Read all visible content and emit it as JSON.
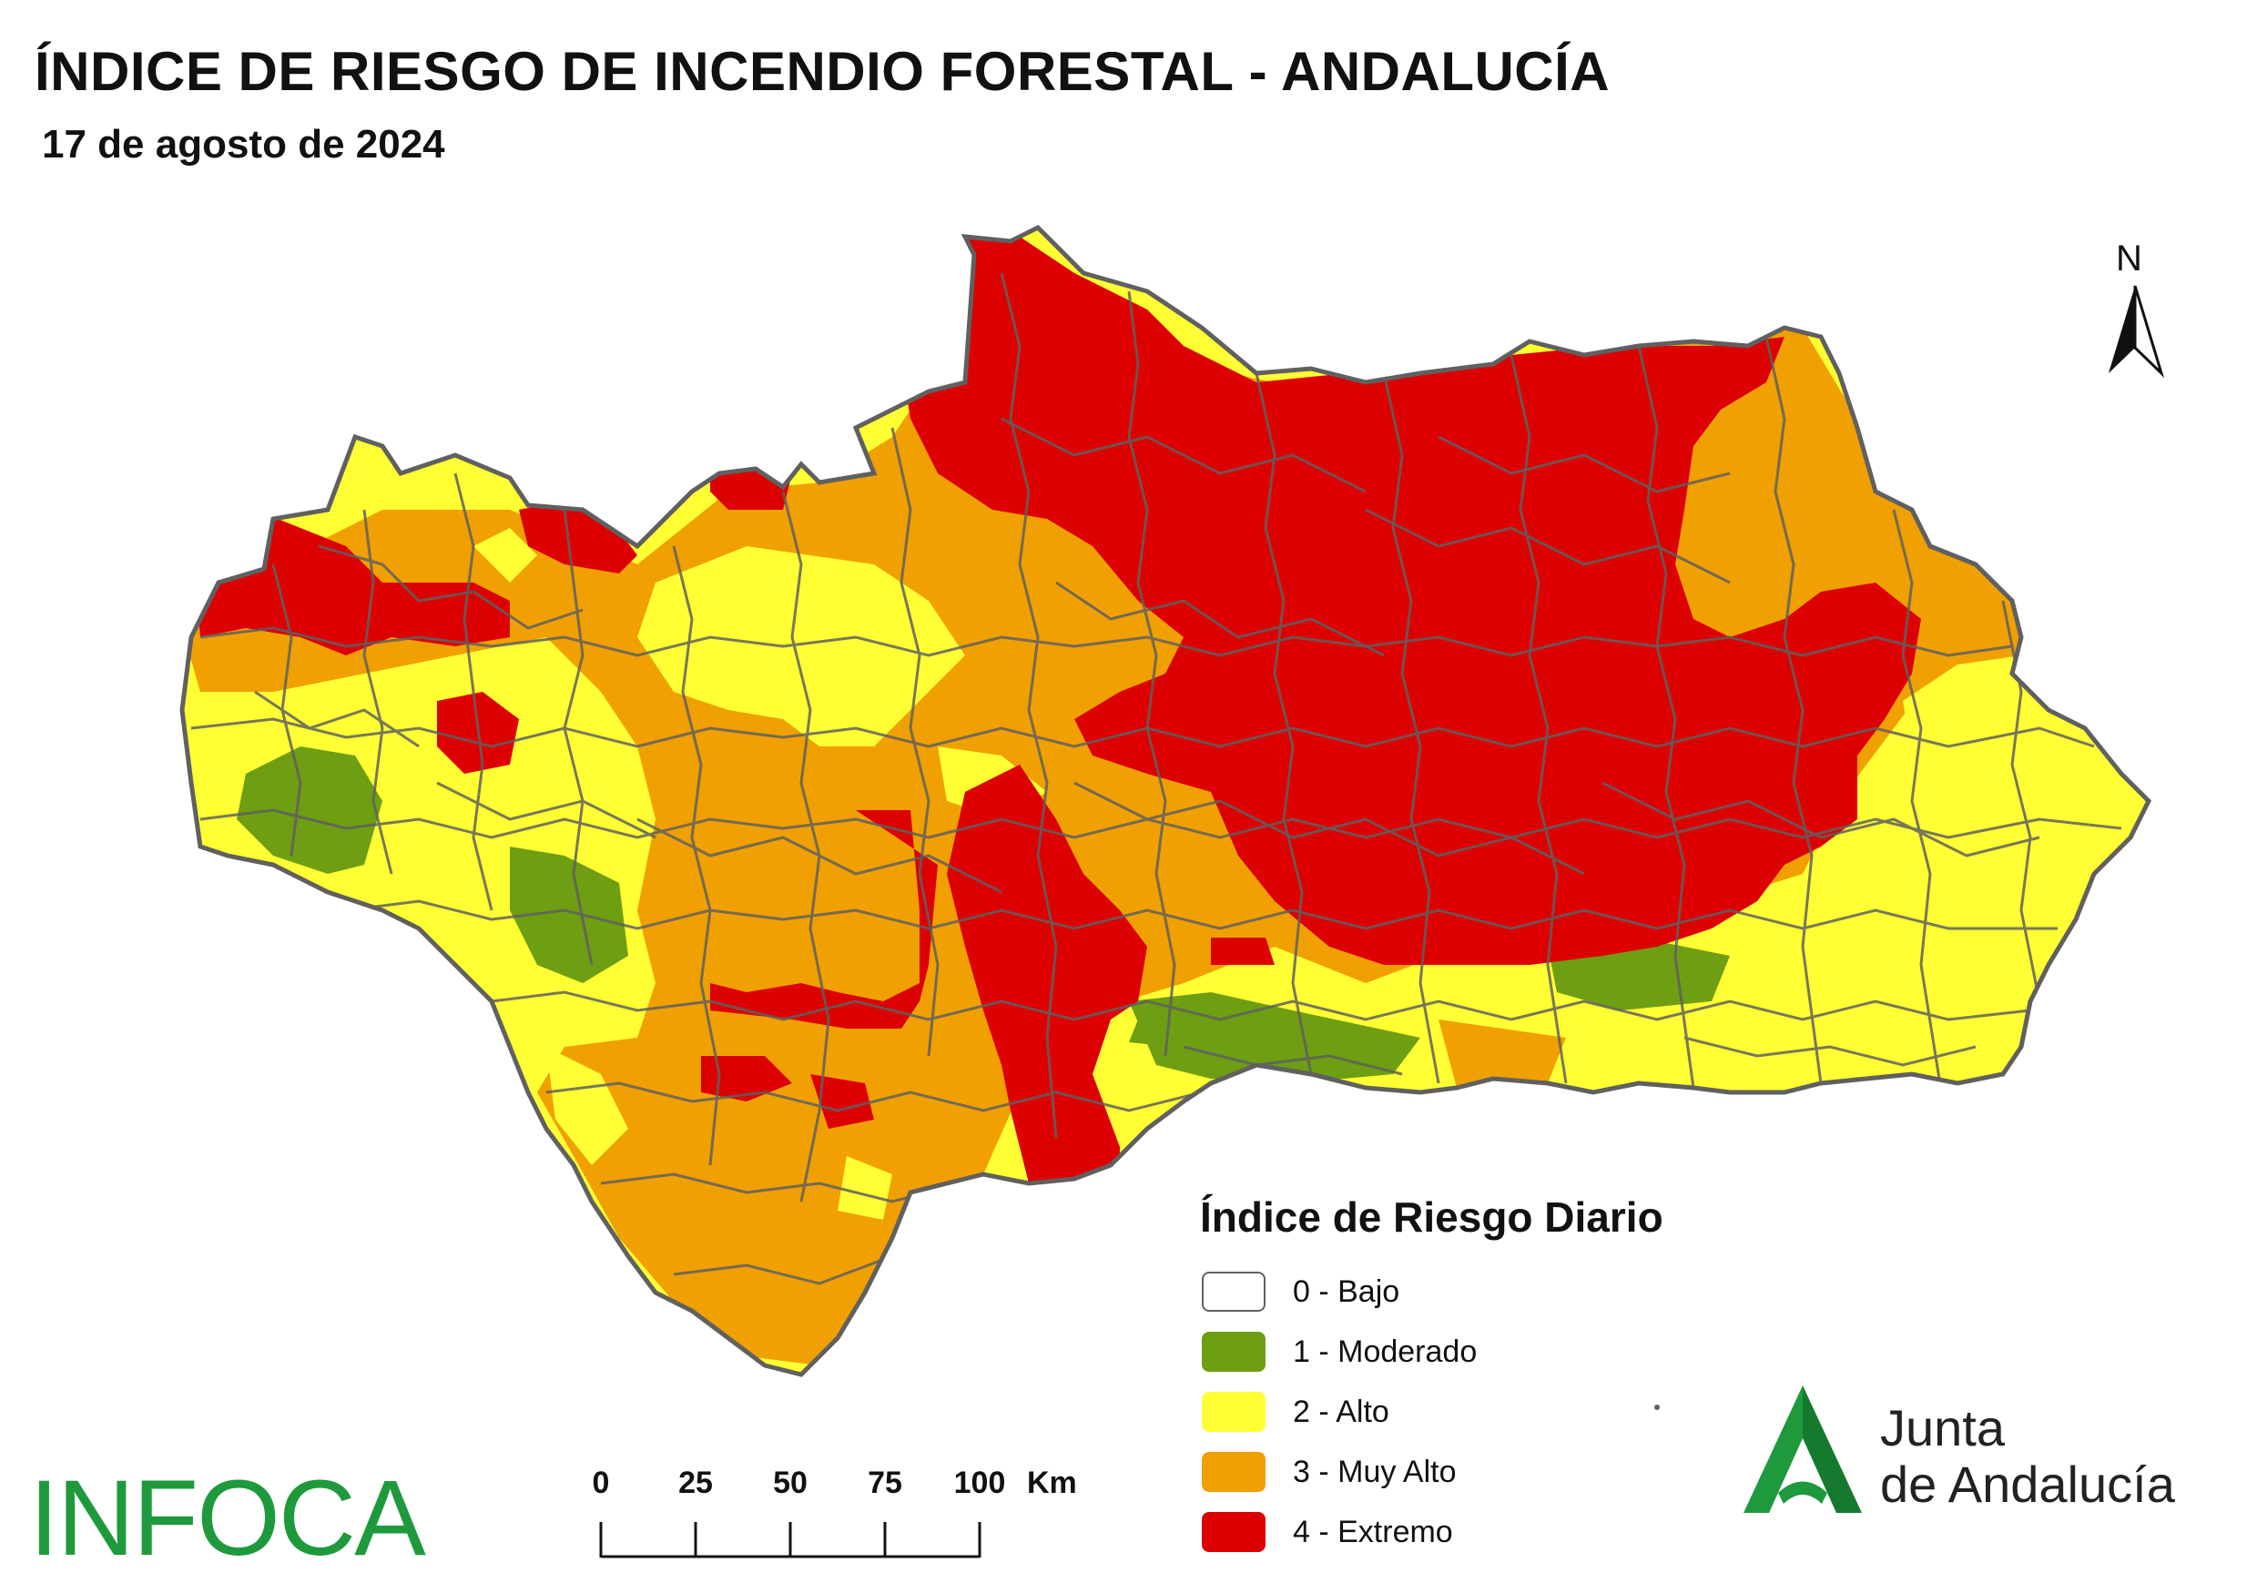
{
  "title": "ÍNDICE DE RIESGO DE INCENDIO FORESTAL - ANDALUCÍA",
  "subtitle": "17 de agosto de 2024",
  "legend": {
    "title": "Índice de Riesgo Diario",
    "items": [
      {
        "label": "0 - Bajo",
        "color": "#ffffff"
      },
      {
        "label": "1 - Moderado",
        "color": "#6e9e12"
      },
      {
        "label": "2 - Alto",
        "color": "#ffff33"
      },
      {
        "label": "3 - Muy Alto",
        "color": "#f0a000"
      },
      {
        "label": "4 - Extremo",
        "color": "#dd0000"
      }
    ]
  },
  "scale": {
    "ticks": [
      "0",
      "25",
      "50",
      "75",
      "100"
    ],
    "unit": "Km"
  },
  "north": {
    "label": "N"
  },
  "logos": {
    "infoca": "INFOCA",
    "junta_line1": "Junta",
    "junta_line2": "de Andalucía"
  },
  "colors": {
    "border": "#606060",
    "infoca": "#1e9a3c",
    "junta": "#1e8a3c"
  }
}
